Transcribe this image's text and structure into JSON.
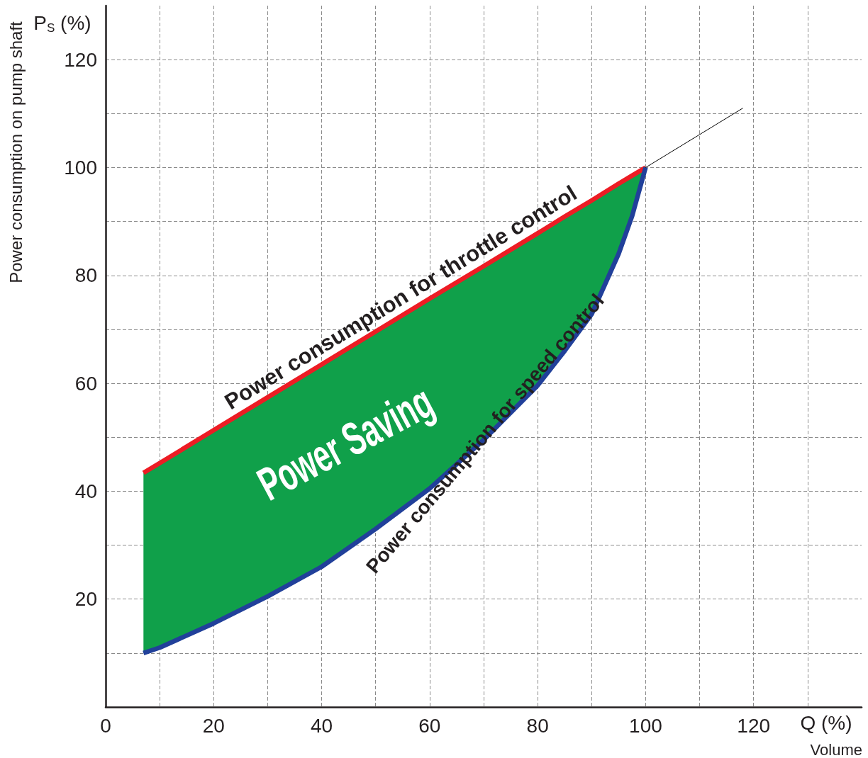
{
  "chart_data": {
    "type": "line",
    "xlabel": "Volume",
    "ylabel": "Power consumption on pump shaft",
    "series": [
      {
        "color": "#ed1c24",
        "colors": [
          "#10a04a",
          "#10a04a",
          "#10a04a",
          "#10a04a",
          "#10a04a",
          "#10a04a",
          "#10a04a",
          "#10a04a",
          "#10a04a",
          "#10a04a",
          "#10a04a",
          "#10a04a",
          "#10a04a",
          "#10a04a"
        ],
        "x": [
          7,
          10,
          20,
          30,
          40,
          50,
          60,
          70,
          80,
          85,
          90,
          95,
          97.5,
          100
        ],
        "values": [
          43.4,
          45.2,
          51.3,
          57.4,
          63.5,
          69.6,
          75.7,
          81.7,
          87.8,
          90.9,
          93.9,
          97,
          98.5,
          100
        ],
        "lower": [
          10,
          11,
          15.5,
          20.5,
          26,
          33,
          40.5,
          49.5,
          59.6,
          66,
          72.8,
          84,
          91,
          100
        ],
        "upper": [
          43.4,
          45.2,
          51.3,
          57.4,
          63.5,
          69.6,
          75.7,
          81.7,
          87.8,
          90.9,
          93.9,
          97,
          98.5,
          100
        ]
      },
      {
        "color": "#21409a",
        "x": [
          7,
          10,
          20,
          30,
          40,
          50,
          60,
          70,
          80,
          85,
          90,
          95,
          97.5,
          100
        ],
        "values": [
          10,
          11,
          15.5,
          20.5,
          26,
          33,
          40.5,
          49.5,
          59.6,
          66,
          72.8,
          84,
          91,
          100
        ]
      },
      {
        "name": null,
        "color": "#000000",
        "x": [
          100,
          118
        ],
        "values": [
          100,
          111
        ]
      }
    ],
    "annotations": [
      "Power consumption for throttle control",
      "Power consumption for speed control",
      "Power Saving",
      "P$_{S}$ (%)",
      "Q (%)"
    ],
    "xlim": [
      0,
      140
    ],
    "xticks": [
      0,
      {
        "value": 10,
        "label": null
      },
      20,
      {
        "value": 30,
        "label": null
      },
      40,
      {
        "value": 50,
        "label": null
      },
      60,
      {
        "value": 70,
        "label": null
      },
      80,
      {
        "value": 90,
        "label": null
      },
      100,
      {
        "value": 110,
        "label": null
      },
      120,
      {
        "value": 130,
        "label": null
      }
    ],
    "ylim": [
      0,
      130
    ],
    "yticks": [
      {
        "value": 0,
        "label": null
      },
      {
        "value": 10,
        "label": null
      },
      20,
      {
        "value": 30,
        "label": null
      },
      40,
      {
        "value": 50,
        "label": null
      },
      60,
      {
        "value": 70,
        "label": null
      },
      80,
      {
        "value": 90,
        "label": null
      },
      100,
      {
        "value": 110,
        "label": null
      },
      120
    ],
    "grid": true,
    "line_style": "solid"
  }
}
